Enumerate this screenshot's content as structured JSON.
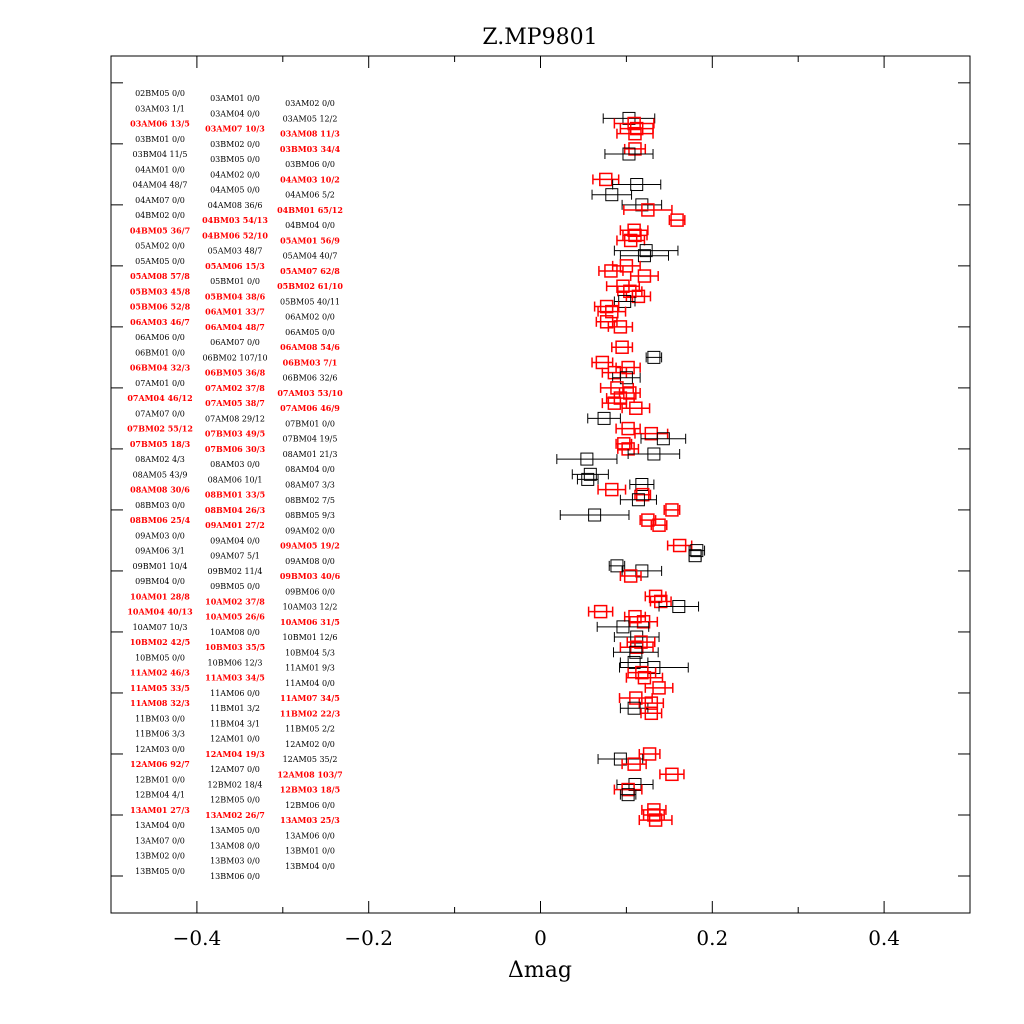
{
  "chart_data": {
    "type": "scatter",
    "title": "Z.MP9801",
    "xlabel": "Δmag",
    "ylabel": "",
    "xlim": [
      -0.5,
      0.5
    ],
    "xticks": [
      -0.4,
      -0.2,
      0,
      0.2,
      0.4
    ],
    "xtick_labels": [
      "−0.4",
      "−0.2",
      "0",
      "0.2",
      "0.4"
    ],
    "grid": false,
    "colors": {
      "k": "#000000",
      "r": "#ff0000"
    },
    "marker": "open-square-with-horizontal-error-bar",
    "rows": [
      "02BM05 0/0",
      "03AM01 0/0",
      "03AM02 0/0",
      "03AM03 1/1",
      "03AM04 0/0",
      "03AM05 12/2",
      "03AM06 13/5",
      "03AM07 10/3",
      "03AM08 11/3",
      "03BM01 0/0",
      "03BM02 0/0",
      "03BM03 34/4",
      "03BM04 11/5",
      "03BM05 0/0",
      "03BM06 0/0",
      "04AM01 0/0",
      "04AM02 0/0",
      "04AM03 10/2",
      "04AM04 48/7",
      "04AM05 0/0",
      "04AM06 5/2",
      "04AM07 0/0",
      "04AM08 36/6",
      "04BM01 65/12",
      "04BM02 0/0",
      "04BM03 54/13",
      "04BM04 0/0",
      "04BM05 36/7",
      "04BM06 52/10",
      "05AM01 56/9",
      "05AM02 0/0",
      "05AM03 48/7",
      "05AM04 40/7",
      "05AM05 0/0",
      "05AM06 15/3",
      "05AM07 62/8",
      "05AM08 57/8",
      "05BM01 0/0",
      "05BM02 61/10",
      "05BM03 45/8",
      "05BM04 38/6",
      "05BM05 40/11",
      "05BM06 52/8",
      "06AM01 33/7",
      "06AM02 0/0",
      "06AM03 46/7",
      "06AM04 48/7",
      "06AM05 0/0",
      "06AM06 0/0",
      "06AM07 0/0",
      "06AM08 54/6",
      "06BM01 0/0",
      "06BM02 107/10",
      "06BM03 7/1",
      "06BM04 32/3",
      "06BM05 36/8",
      "06BM06 32/6",
      "07AM01 0/0",
      "07AM02 37/8",
      "07AM03 53/10",
      "07AM04 46/12",
      "07AM05 38/7",
      "07AM06 46/9",
      "07AM07 0/0",
      "07AM08 29/12",
      "07BM01 0/0",
      "07BM02 55/12",
      "07BM03 49/5",
      "07BM04 19/5",
      "07BM05 18/3",
      "07BM06 30/3",
      "08AM01 21/3",
      "08AM02 4/3",
      "08AM03 0/0",
      "08AM04 0/0",
      "08AM05 43/9",
      "08AM06 10/1",
      "08AM07 3/3",
      "08AM08 30/6",
      "08BM01 33/5",
      "08BM02 7/5",
      "08BM03 0/0",
      "08BM04 26/3",
      "08BM05 9/3",
      "08BM06 25/4",
      "09AM01 27/2",
      "09AM02 0/0",
      "09AM03 0/0",
      "09AM04 0/0",
      "09AM05 19/2",
      "09AM06 3/1",
      "09AM07 5/1",
      "09AM08 0/0",
      "09BM01 10/4",
      "09BM02 11/4",
      "09BM03 40/6",
      "09BM04 0/0",
      "09BM05 0/0",
      "09BM06 0/0",
      "10AM01 28/8",
      "10AM02 37/8",
      "10AM03 12/2",
      "10AM04 40/13",
      "10AM05 26/6",
      "10AM06 31/5",
      "10AM07 10/3",
      "10AM08 0/0",
      "10BM01 12/6",
      "10BM02 42/5",
      "10BM03 35/5",
      "10BM04 5/3",
      "10BM05 0/0",
      "10BM06 12/3",
      "11AM01 9/3",
      "11AM02 46/3",
      "11AM03 34/5",
      "11AM04 0/0",
      "11AM05 33/5",
      "11AM06 0/0",
      "11AM07 34/5",
      "11AM08 32/3",
      "11BM01 3/2",
      "11BM02 22/3",
      "11BM03 0/0",
      "11BM04 3/1",
      "11BM05 2/2",
      "11BM06 3/3",
      "12AM01 0/0",
      "12AM02 0/0",
      "12AM03 0/0",
      "12AM04 19/3",
      "12AM05 35/2",
      "12AM06 92/7",
      "12AM07 0/0",
      "12AM08 103/7",
      "12BM01 0/0",
      "12BM02 18/4",
      "12BM03 18/5",
      "12BM04 4/1",
      "12BM05 0/0",
      "12BM06 0/0",
      "13AM01 27/3",
      "13AM02 26/7",
      "13AM03 25/3",
      "13AM04 0/0",
      "13AM05 0/0",
      "13AM06 0/0",
      "13AM07 0/0",
      "13AM08 0/0",
      "13BM01 0/0",
      "13BM02 0/0",
      "13BM03 0/0",
      "13BM04 0/0",
      "13BM05 0/0",
      "13BM06 0/0"
    ],
    "points": [
      [
        5,
        0.103,
        0.03,
        "k"
      ],
      [
        6,
        0.109,
        0.023,
        "r"
      ],
      [
        7,
        0.112,
        0.019,
        "r"
      ],
      [
        8,
        0.11,
        0.021,
        "r"
      ],
      [
        11,
        0.11,
        0.012,
        "r"
      ],
      [
        12,
        0.103,
        0.028,
        "k"
      ],
      [
        17,
        0.076,
        0.015,
        "r"
      ],
      [
        18,
        0.112,
        0.028,
        "k"
      ],
      [
        20,
        0.083,
        0.023,
        "k"
      ],
      [
        22,
        0.118,
        0.023,
        "k"
      ],
      [
        23,
        0.125,
        0.028,
        "r"
      ],
      [
        25,
        0.159,
        0.009,
        "r"
      ],
      [
        27,
        0.109,
        0.016,
        "r"
      ],
      [
        28,
        0.11,
        0.014,
        "r"
      ],
      [
        29,
        0.105,
        0.016,
        "r"
      ],
      [
        31,
        0.123,
        0.037,
        "k"
      ],
      [
        32,
        0.121,
        0.028,
        "k"
      ],
      [
        34,
        0.1,
        0.016,
        "r"
      ],
      [
        35,
        0.082,
        0.014,
        "r"
      ],
      [
        36,
        0.121,
        0.016,
        "r"
      ],
      [
        38,
        0.096,
        0.019,
        "r"
      ],
      [
        39,
        0.104,
        0.014,
        "r"
      ],
      [
        40,
        0.114,
        0.014,
        "r"
      ],
      [
        41,
        0.098,
        0.012,
        "k"
      ],
      [
        42,
        0.077,
        0.014,
        "r"
      ],
      [
        43,
        0.083,
        0.016,
        "r"
      ],
      [
        45,
        0.077,
        0.012,
        "r"
      ],
      [
        46,
        0.093,
        0.014,
        "r"
      ],
      [
        50,
        0.095,
        0.012,
        "r"
      ],
      [
        52,
        0.132,
        0.009,
        "k"
      ],
      [
        53,
        0.072,
        0.012,
        "r"
      ],
      [
        54,
        0.102,
        0.014,
        "r"
      ],
      [
        55,
        0.086,
        0.014,
        "r"
      ],
      [
        56,
        0.1,
        0.016,
        "k"
      ],
      [
        58,
        0.089,
        0.019,
        "r"
      ],
      [
        59,
        0.104,
        0.012,
        "r"
      ],
      [
        60,
        0.093,
        0.016,
        "r"
      ],
      [
        61,
        0.086,
        0.014,
        "r"
      ],
      [
        62,
        0.111,
        0.016,
        "r"
      ],
      [
        64,
        0.074,
        0.019,
        "k"
      ],
      [
        66,
        0.102,
        0.014,
        "r"
      ],
      [
        67,
        0.129,
        0.019,
        "r"
      ],
      [
        68,
        0.143,
        0.026,
        "k"
      ],
      [
        69,
        0.097,
        0.009,
        "r"
      ],
      [
        70,
        0.102,
        0.012,
        "r"
      ],
      [
        71,
        0.132,
        0.03,
        "k"
      ],
      [
        72,
        0.054,
        0.035,
        "k"
      ],
      [
        75,
        0.058,
        0.021,
        "k"
      ],
      [
        76,
        0.055,
        0.012,
        "k"
      ],
      [
        77,
        0.118,
        0.014,
        "k"
      ],
      [
        78,
        0.083,
        0.016,
        "r"
      ],
      [
        79,
        0.119,
        0.009,
        "r"
      ],
      [
        80,
        0.114,
        0.021,
        "k"
      ],
      [
        82,
        0.153,
        0.009,
        "r"
      ],
      [
        83,
        0.063,
        0.04,
        "k"
      ],
      [
        84,
        0.125,
        0.009,
        "r"
      ],
      [
        85,
        0.138,
        0.009,
        "r"
      ],
      [
        89,
        0.162,
        0.014,
        "r"
      ],
      [
        90,
        0.182,
        0.009,
        "k"
      ],
      [
        91,
        0.18,
        0.007,
        "k"
      ],
      [
        93,
        0.089,
        0.009,
        "k"
      ],
      [
        94,
        0.118,
        0.023,
        "k"
      ],
      [
        95,
        0.105,
        0.012,
        "r"
      ],
      [
        99,
        0.134,
        0.012,
        "r"
      ],
      [
        100,
        0.14,
        0.012,
        "r"
      ],
      [
        101,
        0.161,
        0.023,
        "k"
      ],
      [
        102,
        0.07,
        0.014,
        "r"
      ],
      [
        103,
        0.11,
        0.012,
        "r"
      ],
      [
        104,
        0.12,
        0.016,
        "r"
      ],
      [
        105,
        0.096,
        0.03,
        "k"
      ],
      [
        107,
        0.112,
        0.026,
        "k"
      ],
      [
        108,
        0.117,
        0.016,
        "r"
      ],
      [
        109,
        0.112,
        0.019,
        "r"
      ],
      [
        110,
        0.111,
        0.026,
        "k"
      ],
      [
        112,
        0.109,
        0.016,
        "k"
      ],
      [
        113,
        0.132,
        0.04,
        "k"
      ],
      [
        114,
        0.118,
        0.016,
        "r"
      ],
      [
        115,
        0.121,
        0.021,
        "r"
      ],
      [
        117,
        0.138,
        0.016,
        "r"
      ],
      [
        119,
        0.111,
        0.019,
        "r"
      ],
      [
        120,
        0.129,
        0.014,
        "r"
      ],
      [
        121,
        0.109,
        0.016,
        "k"
      ],
      [
        122,
        0.129,
        0.012,
        "r"
      ],
      [
        130,
        0.127,
        0.012,
        "r"
      ],
      [
        131,
        0.093,
        0.026,
        "k"
      ],
      [
        132,
        0.109,
        0.014,
        "r"
      ],
      [
        134,
        0.153,
        0.014,
        "r"
      ],
      [
        136,
        0.11,
        0.021,
        "k"
      ],
      [
        137,
        0.102,
        0.016,
        "r"
      ],
      [
        138,
        0.102,
        0.009,
        "k"
      ],
      [
        141,
        0.132,
        0.014,
        "r"
      ],
      [
        142,
        0.132,
        0.012,
        "r"
      ],
      [
        143,
        0.134,
        0.019,
        "r"
      ]
    ]
  }
}
